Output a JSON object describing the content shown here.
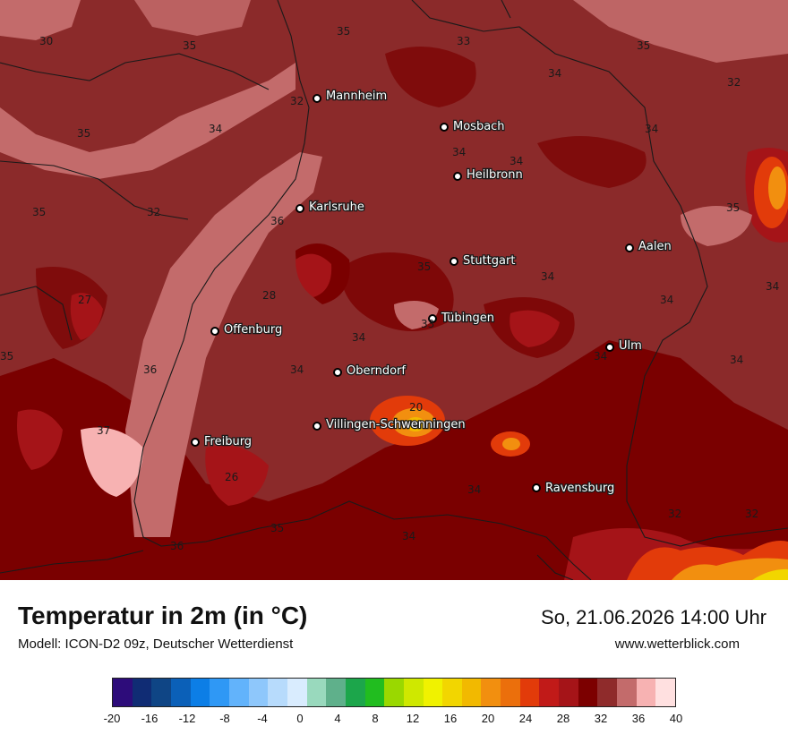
{
  "map": {
    "cities": [
      {
        "name": "Mannheim"
      },
      {
        "name": "Mosbach"
      },
      {
        "name": "Heilbronn"
      },
      {
        "name": "Karlsruhe"
      },
      {
        "name": "Aalen"
      },
      {
        "name": "Stuttgart"
      },
      {
        "name": "Tübingen"
      },
      {
        "name": "Offenburg"
      },
      {
        "name": "Ulm"
      },
      {
        "name": "Oberndorf"
      },
      {
        "name": "Villingen-Schwenningen"
      },
      {
        "name": "Freiburg"
      },
      {
        "name": "Ravensburg"
      }
    ],
    "isolines": [
      "30",
      "35",
      "35",
      "33",
      "35",
      "34",
      "32",
      "32",
      "34",
      "35",
      "34",
      "34",
      "34",
      "35",
      "35",
      "32",
      "36",
      "35",
      "34",
      "27",
      "34",
      "28",
      "34",
      "33",
      "34",
      "35",
      "36",
      "34",
      "34",
      "37",
      "20",
      "26",
      "34",
      "34",
      "32",
      "32",
      "35",
      "36",
      "34"
    ]
  },
  "footer": {
    "title": "Temperatur in 2m (in °C)",
    "model": "Modell: ICON-D2 09z, Deutscher Wetterdienst",
    "datetime": "So, 21.06.2026 14:00 Uhr",
    "website": "www.wetterblick.com"
  },
  "legend": {
    "colors": [
      "#2d0c7a",
      "#102c74",
      "#0f4585",
      "#0b60b8",
      "#0c7ee6",
      "#2f98f5",
      "#62b3fb",
      "#8ec7fb",
      "#b7dbfc",
      "#d9ecfe",
      "#99d9bd",
      "#5fb08b",
      "#1ca64b",
      "#21bd1f",
      "#9ad800",
      "#cfe800",
      "#f0f200",
      "#f2d600",
      "#f2b900",
      "#f28f0f",
      "#eb6f0c",
      "#e23b0a",
      "#c11a18",
      "#a51418",
      "#7c0000",
      "#8f2b2b",
      "#c36b6b",
      "#f7b2b2",
      "#ffe0e0"
    ],
    "ticks": [
      "-20",
      "-16",
      "-12",
      "-8",
      "-4",
      "0",
      "4",
      "8",
      "12",
      "16",
      "20",
      "24",
      "28",
      "32",
      "36",
      "40"
    ]
  }
}
